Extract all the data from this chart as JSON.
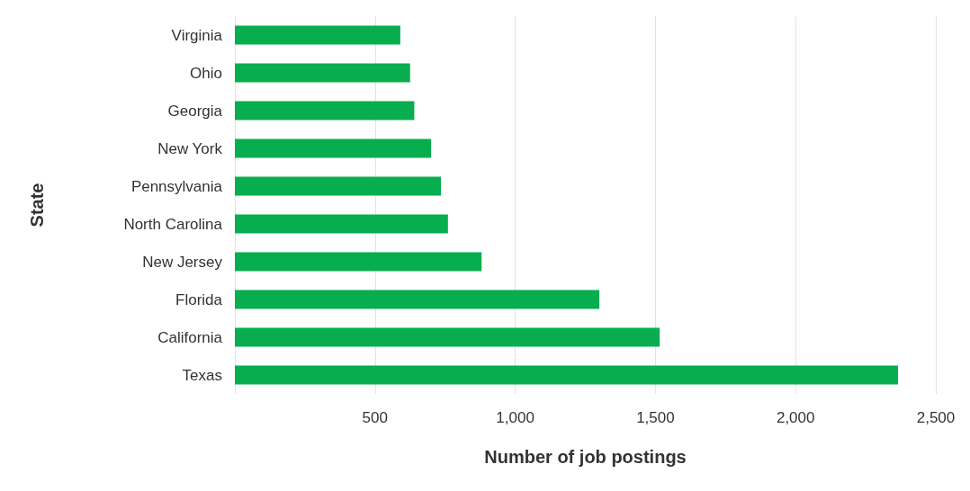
{
  "chart_data": {
    "type": "bar",
    "orientation": "horizontal",
    "xlabel": "Number of job postings",
    "ylabel": "State",
    "categories": [
      "Virginia",
      "Ohio",
      "Georgia",
      "New York",
      "Pennsylvania",
      "North Carolina",
      "New Jersey",
      "Florida",
      "California",
      "Texas"
    ],
    "values": [
      590,
      625,
      640,
      700,
      735,
      760,
      880,
      1300,
      1515,
      2365
    ],
    "color": "#07ad4f",
    "xlim": [
      0,
      2500
    ],
    "xticks": [
      {
        "value": 0,
        "label": null
      },
      500,
      {
        "value": 1000,
        "label": "1,000"
      },
      {
        "value": 1500,
        "label": "1,500"
      },
      {
        "value": 2000,
        "label": "2,000"
      },
      {
        "value": 2500,
        "label": "2,500"
      }
    ],
    "grid": "x"
  }
}
